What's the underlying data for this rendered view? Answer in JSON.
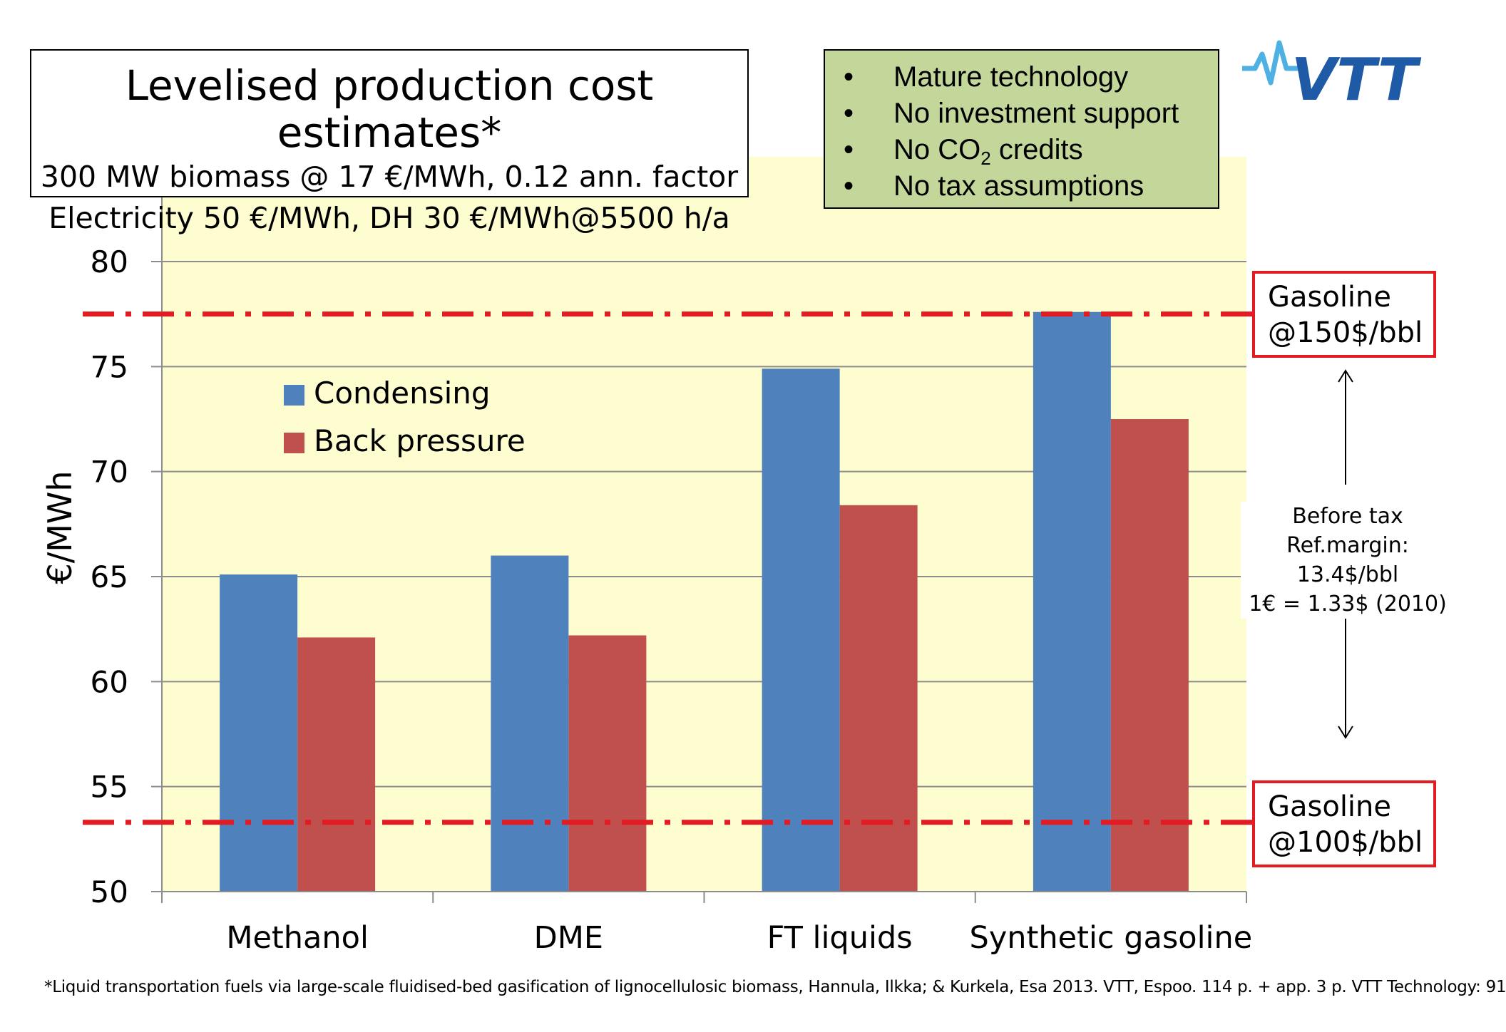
{
  "title_box": {
    "line1": "Levelised production cost estimates*",
    "line2": "300 MW biomass @ 17 €/MWh, 0.12 ann. factor",
    "line3": "Electricity 50 €/MWh, DH 30 €/MWh@5500 h/a"
  },
  "assumptions": [
    {
      "text": "Mature technology"
    },
    {
      "text": "No investment support"
    },
    {
      "text_before": "No CO",
      "subscript": "2",
      "text_after": " credits"
    },
    {
      "text": "No tax assumptions"
    }
  ],
  "bullet": "•",
  "logo_text": "VTT",
  "gasoline_high": {
    "line1": "Gasoline",
    "line2": "@150$/bbl",
    "value": 77.5
  },
  "gasoline_low": {
    "line1": "Gasoline",
    "line2": "@100$/bbl",
    "value": 53.3
  },
  "side_note": {
    "line1": "Before tax",
    "line2": "Ref.margin: 13.4$/bbl",
    "line3": "1€ = 1.33$ (2010)"
  },
  "footnote": "*Liquid transportation fuels via large-scale fluidised-bed gasification of lignocellulosic biomass, Hannula, Ilkka; & Kurkela, Esa 2013. VTT, Espoo. 114 p. + app. 3 p. VTT Technology: 91",
  "colors": {
    "condensing": "#4f81bd",
    "back_pressure": "#c0504d",
    "plot_background": "#fdfdd0",
    "reference_line": "#e31b23",
    "notes_background": "#c4d79b",
    "logo": "#1f5aa6"
  },
  "chart_data": {
    "type": "bar",
    "title": "",
    "xlabel": "",
    "ylabel": "€/MWh",
    "ylim": [
      50,
      80
    ],
    "yticks": [
      50,
      55,
      60,
      65,
      70,
      75,
      80
    ],
    "grid": true,
    "legend_position": "top-left",
    "categories": [
      "Methanol",
      "DME",
      "FT liquids",
      "Synthetic gasoline"
    ],
    "series": [
      {
        "name": "Condensing",
        "values": [
          65.1,
          66.0,
          74.9,
          77.6
        ]
      },
      {
        "name": "Back pressure",
        "values": [
          62.1,
          62.2,
          68.4,
          72.5
        ]
      }
    ],
    "reference_lines": [
      77.5,
      53.3
    ]
  }
}
